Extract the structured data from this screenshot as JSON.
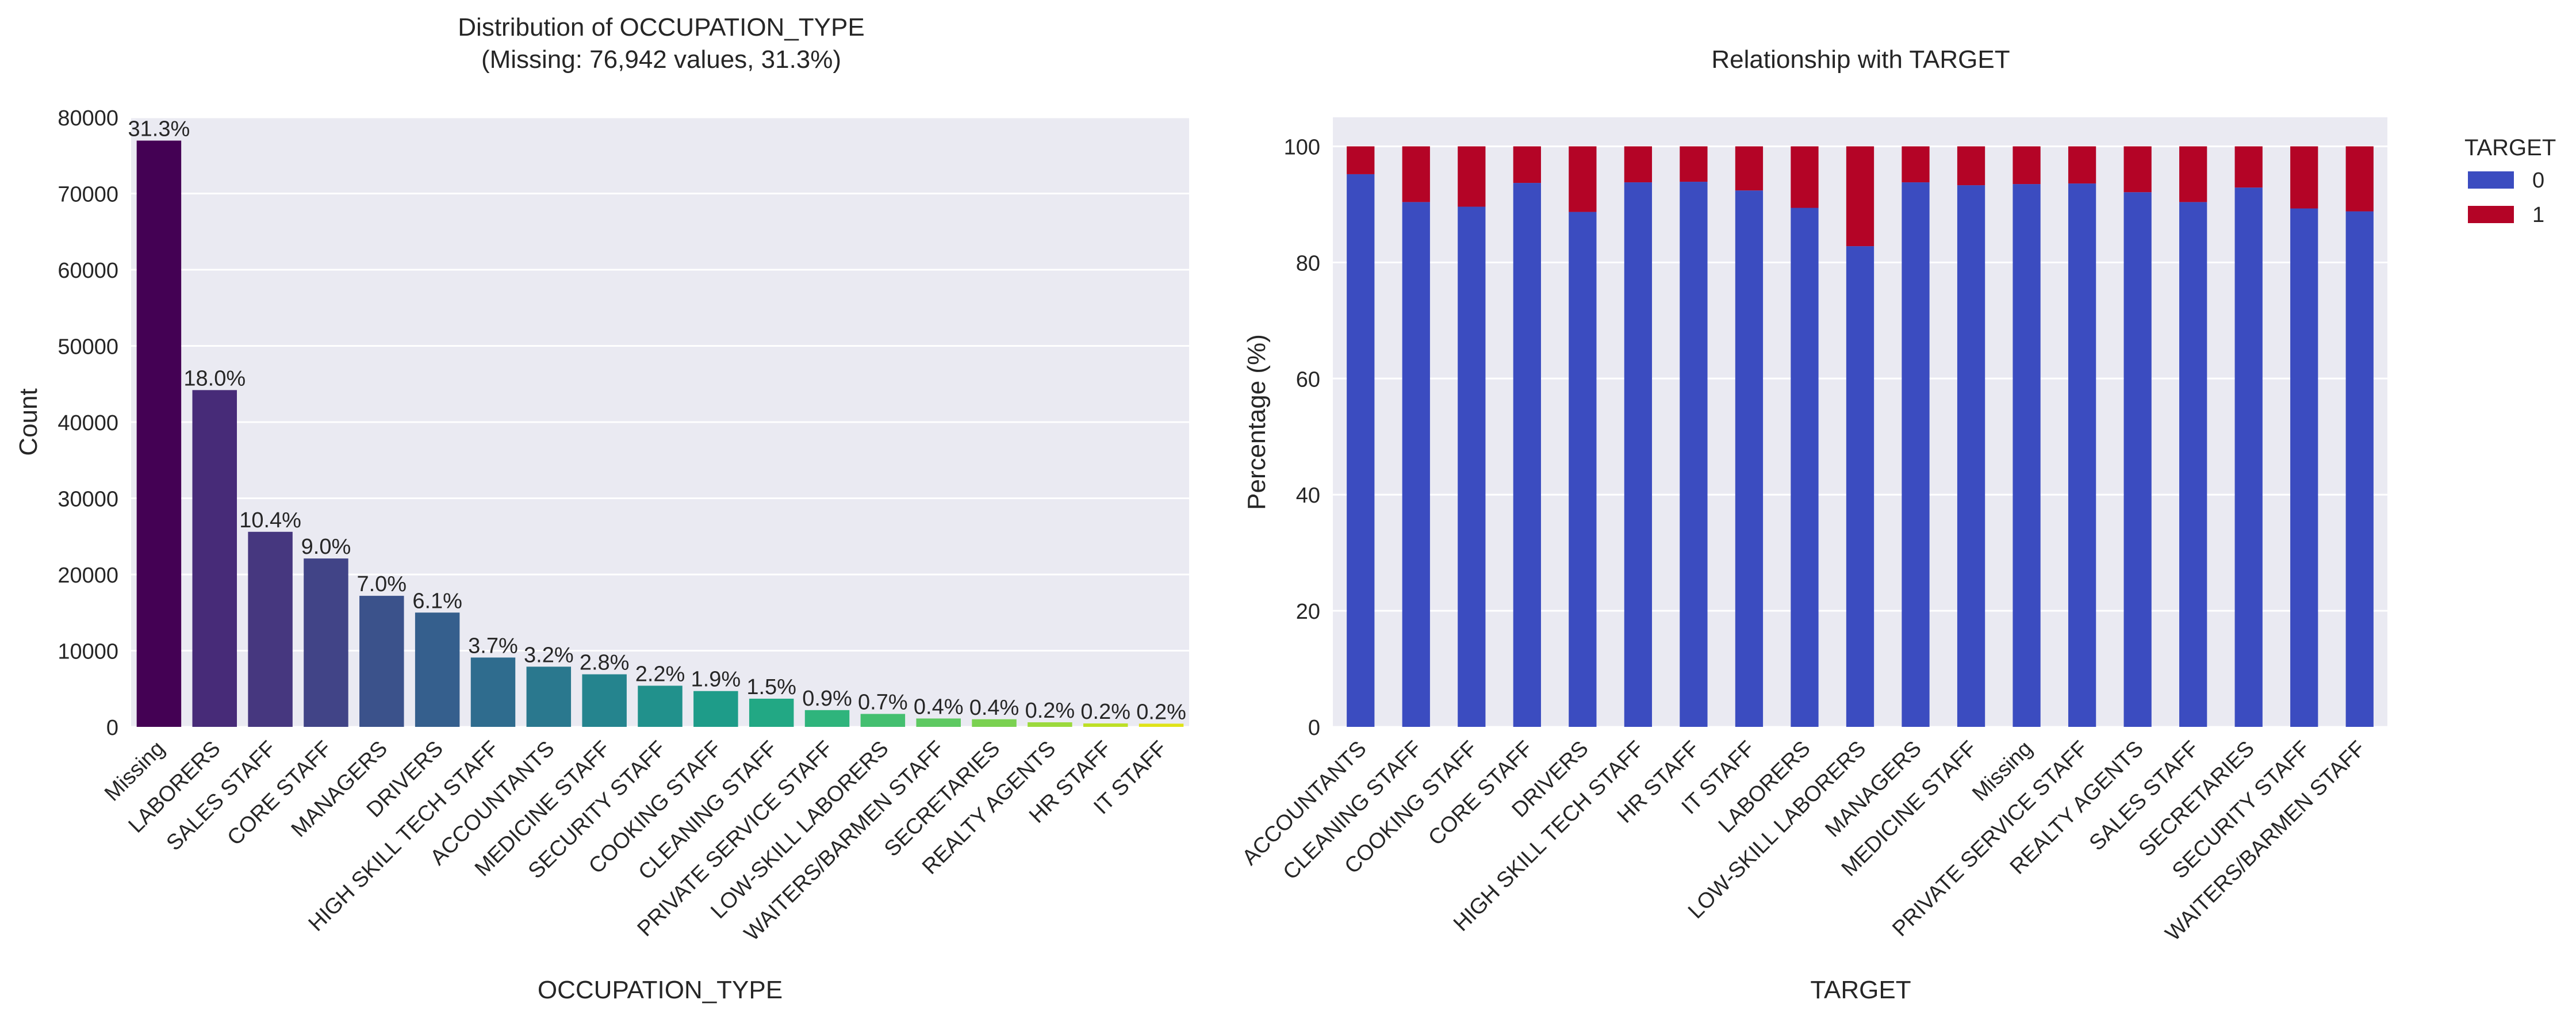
{
  "chart_data": [
    {
      "type": "bar",
      "title_line1": "Distribution of OCCUPATION_TYPE",
      "title_line2": "(Missing: 76,942 values, 31.3%)",
      "xlabel": "OCCUPATION_TYPE",
      "ylabel": "Count",
      "ylim": [
        0,
        80000
      ],
      "yticks": [
        0,
        10000,
        20000,
        30000,
        40000,
        50000,
        60000,
        70000,
        80000
      ],
      "grid": true,
      "categories": [
        "Missing",
        "LABORERS",
        "SALES STAFF",
        "CORE STAFF",
        "MANAGERS",
        "DRIVERS",
        "HIGH SKILL TECH STAFF",
        "ACCOUNTANTS",
        "MEDICINE STAFF",
        "SECURITY STAFF",
        "COOKING STAFF",
        "CLEANING STAFF",
        "PRIVATE SERVICE STAFF",
        "LOW-SKILL LABORERS",
        "WAITERS/BARMEN STAFF",
        "SECRETARIES",
        "REALTY AGENTS",
        "HR STAFF",
        "IT STAFF"
      ],
      "values": [
        76942,
        44200,
        25600,
        22100,
        17200,
        15000,
        9100,
        7900,
        6900,
        5400,
        4700,
        3700,
        2200,
        1700,
        1100,
        1000,
        600,
        450,
        420
      ],
      "labels": [
        "31.3%",
        "18.0%",
        "10.4%",
        "9.0%",
        "7.0%",
        "6.1%",
        "3.7%",
        "3.2%",
        "2.8%",
        "2.2%",
        "1.9%",
        "1.5%",
        "0.9%",
        "0.7%",
        "0.4%",
        "0.4%",
        "0.2%",
        "0.2%",
        "0.2%"
      ],
      "colors": [
        "#440154",
        "#472b78",
        "#46377f",
        "#414487",
        "#3b528b",
        "#355f8d",
        "#2f6c8e",
        "#2a788e",
        "#25848e",
        "#21918c",
        "#1e9c89",
        "#22a884",
        "#2fb47c",
        "#44bf70",
        "#5ec962",
        "#7ad151",
        "#9bd93c",
        "#bddf26",
        "#dfe318"
      ]
    },
    {
      "type": "bar",
      "stacked": true,
      "title": "Relationship with TARGET",
      "xlabel": "TARGET",
      "ylabel": "Percentage (%)",
      "ylim": [
        0,
        105
      ],
      "yticks": [
        0,
        20,
        40,
        60,
        80,
        100
      ],
      "grid": true,
      "legend": {
        "title": "TARGET",
        "position": "outside-top-right"
      },
      "categories": [
        "ACCOUNTANTS",
        "CLEANING STAFF",
        "COOKING STAFF",
        "CORE STAFF",
        "DRIVERS",
        "HIGH SKILL TECH STAFF",
        "HR STAFF",
        "IT STAFF",
        "LABORERS",
        "LOW-SKILL LABORERS",
        "MANAGERS",
        "MEDICINE STAFF",
        "Missing",
        "PRIVATE SERVICE STAFF",
        "REALTY AGENTS",
        "SALES STAFF",
        "SECRETARIES",
        "SECURITY STAFF",
        "WAITERS/BARMEN STAFF"
      ],
      "series": [
        {
          "name": "0",
          "color": "#3b4cc0",
          "values": [
            95.2,
            90.4,
            89.6,
            93.7,
            88.7,
            93.8,
            93.9,
            92.4,
            89.4,
            82.8,
            93.8,
            93.3,
            93.5,
            93.6,
            92.1,
            90.4,
            92.9,
            89.3,
            88.8
          ]
        },
        {
          "name": "1",
          "color": "#b40426",
          "values": [
            4.8,
            9.6,
            10.4,
            6.3,
            11.3,
            6.2,
            6.1,
            7.6,
            10.6,
            17.2,
            6.2,
            6.7,
            6.5,
            6.4,
            7.9,
            9.6,
            7.1,
            10.7,
            11.2
          ]
        }
      ]
    }
  ]
}
